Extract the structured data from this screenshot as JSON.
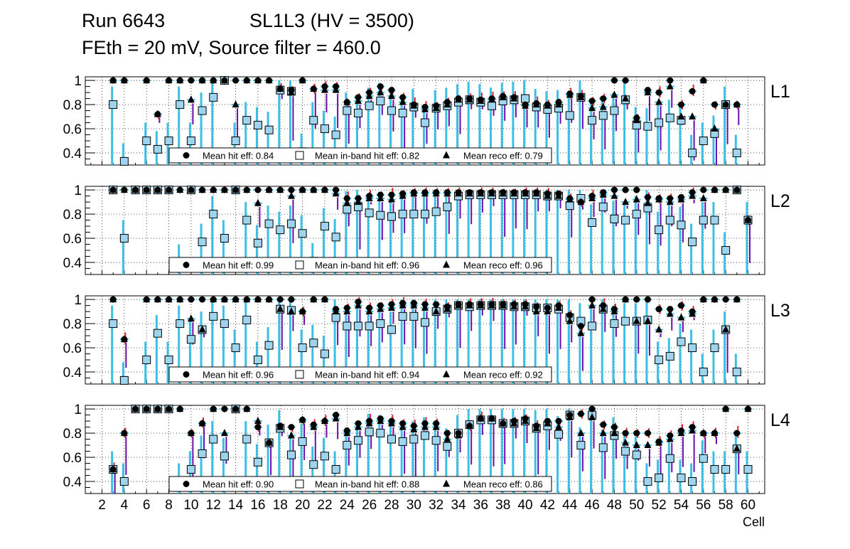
{
  "header": {
    "run_label": "Run 6643",
    "layer_label": "SL1L3 (HV = 3500)",
    "conditions": "FEth = 20 mV, Source filter = 460.0"
  },
  "chart_data": {
    "type": "scatter",
    "x_axis": {
      "label": "Cell",
      "range": [
        0.5,
        61.5
      ],
      "ticks": [
        2,
        4,
        6,
        8,
        10,
        12,
        14,
        16,
        18,
        20,
        22,
        24,
        26,
        28,
        30,
        32,
        34,
        36,
        38,
        40,
        42,
        44,
        46,
        48,
        50,
        52,
        54,
        56,
        58,
        60
      ]
    },
    "y_axis": {
      "range": [
        0.3,
        1.03
      ],
      "ticks": [
        0.4,
        0.6,
        0.8,
        1
      ],
      "grid": true
    },
    "colors": {
      "hit": "#000000",
      "inband_fill": "#9fd4ee",
      "reco": "#000000",
      "xerr": "#3cbfe6",
      "err_red": "#e0202a",
      "err_purple": "#6a0dad"
    },
    "panels": [
      {
        "name": "L1",
        "legend": {
          "hit": "Mean hit  eff: 0.84",
          "inband": "Mean in-band hit eff: 0.82",
          "reco": "Mean reco eff: 0.79"
        },
        "cells": [
          3,
          4,
          6,
          7,
          8,
          9,
          10,
          11,
          12,
          13,
          14,
          15,
          16,
          17,
          18,
          19,
          20,
          21,
          22,
          23,
          24,
          25,
          26,
          27,
          28,
          29,
          30,
          31,
          32,
          33,
          34,
          35,
          36,
          37,
          38,
          39,
          40,
          41,
          42,
          43,
          44,
          45,
          46,
          47,
          48,
          49,
          50,
          51,
          52,
          53,
          54,
          55,
          56,
          57,
          58,
          59
        ],
        "hit_eff": [
          1,
          1,
          1,
          0.72,
          1,
          1,
          1,
          1,
          1,
          1,
          1,
          1,
          1,
          1,
          0.93,
          0.92,
          1,
          0.93,
          0.95,
          0.95,
          0.82,
          0.86,
          0.9,
          0.95,
          0.92,
          0.86,
          0.8,
          0.78,
          0.79,
          0.82,
          0.85,
          0.85,
          0.84,
          0.85,
          0.87,
          0.86,
          0.8,
          0.81,
          0.8,
          0.82,
          0.89,
          0.87,
          0.83,
          0.85,
          1,
          1,
          0.69,
          0.92,
          0.9,
          1,
          0.8,
          0.91,
          1,
          0.8,
          0.8,
          0.8
        ],
        "inband_eff": [
          0.8,
          0.33,
          0.5,
          0.43,
          0.5,
          0.8,
          0.5,
          0.75,
          0.86,
          1,
          0.5,
          0.67,
          0.63,
          0.59,
          0.92,
          0.91,
          0.41,
          0.67,
          0.6,
          0.55,
          0.75,
          0.73,
          0.79,
          0.83,
          0.75,
          0.73,
          0.78,
          0.65,
          0.77,
          0.79,
          0.82,
          0.84,
          0.82,
          0.79,
          0.83,
          0.84,
          0.85,
          0.78,
          0.76,
          0.77,
          0.71,
          0.86,
          0.67,
          0.71,
          0.75,
          0.84,
          0.63,
          0.62,
          0.65,
          0.69,
          0.67,
          0.4,
          0.5,
          0.56,
          0.8,
          0.4
        ],
        "reco_eff": [
          1,
          1,
          1,
          0.72,
          1,
          1,
          0.84,
          1,
          1,
          1,
          0.8,
          1,
          1,
          1,
          0.93,
          0.9,
          1,
          0.93,
          0.92,
          0.92,
          0.82,
          0.83,
          0.87,
          0.9,
          0.87,
          0.82,
          0.79,
          0.76,
          0.77,
          0.8,
          0.84,
          0.84,
          0.83,
          0.84,
          0.86,
          0.85,
          0.79,
          0.8,
          0.79,
          0.8,
          0.88,
          0.86,
          0.77,
          0.78,
          0.88,
          0.85,
          0.67,
          0.9,
          0.82,
          0.95,
          0.7,
          0.7,
          1,
          0.6,
          0.8,
          0.8
        ]
      },
      {
        "name": "L2",
        "legend": {
          "hit": "Mean hit  eff: 0.99",
          "inband": "Mean in-band hit eff: 0.96",
          "reco": "Mean reco eff: 0.96"
        },
        "cells": [
          3,
          4,
          5,
          6,
          7,
          8,
          9,
          10,
          11,
          12,
          13,
          14,
          15,
          16,
          17,
          18,
          19,
          20,
          21,
          22,
          23,
          24,
          25,
          26,
          27,
          28,
          29,
          30,
          31,
          32,
          33,
          34,
          35,
          36,
          37,
          38,
          39,
          40,
          41,
          42,
          43,
          44,
          45,
          46,
          47,
          48,
          49,
          50,
          51,
          52,
          53,
          54,
          55,
          56,
          57,
          58,
          59,
          60
        ],
        "hit_eff": [
          1,
          1,
          1,
          1,
          1,
          1,
          1,
          1,
          1,
          1,
          1,
          1,
          1,
          1,
          1,
          1,
          1,
          1,
          1,
          1,
          1,
          0.93,
          0.93,
          0.95,
          0.96,
          0.96,
          0.97,
          0.98,
          0.98,
          0.98,
          0.98,
          0.98,
          0.98,
          0.98,
          0.98,
          0.98,
          0.98,
          0.98,
          0.98,
          0.97,
          0.97,
          0.93,
          0.9,
          0.95,
          0.98,
          1,
          1,
          1,
          0.94,
          0.93,
          0.93,
          0.94,
          0.98,
          1,
          1,
          1,
          1,
          0.75
        ],
        "inband_eff": [
          1,
          0.6,
          1,
          1,
          1,
          1,
          0.4,
          1,
          0.57,
          0.8,
          0.6,
          1,
          0.75,
          0.56,
          0.72,
          0.67,
          0.72,
          0.64,
          0.41,
          0.7,
          0.61,
          0.84,
          0.86,
          0.81,
          0.79,
          0.78,
          0.8,
          0.8,
          0.8,
          0.82,
          0.86,
          0.95,
          0.96,
          0.96,
          0.96,
          0.96,
          0.96,
          0.96,
          0.96,
          0.95,
          0.95,
          0.87,
          0.93,
          0.73,
          0.86,
          0.76,
          0.75,
          0.8,
          0.85,
          0.67,
          0.75,
          0.71,
          0.57,
          0.75,
          0.75,
          0.5,
          1,
          0.75
        ],
        "reco_eff": [
          1,
          1,
          1,
          1,
          1,
          1,
          1,
          1,
          1,
          1,
          1,
          1,
          1,
          0.89,
          1,
          1,
          0.95,
          1,
          1,
          1,
          0.97,
          0.89,
          0.9,
          0.93,
          0.93,
          0.92,
          0.95,
          0.97,
          0.97,
          0.97,
          0.97,
          0.97,
          0.97,
          0.97,
          0.97,
          0.97,
          0.97,
          0.97,
          0.97,
          0.95,
          0.95,
          0.92,
          0.9,
          0.93,
          0.96,
          0.95,
          0.9,
          0.92,
          0.89,
          0.92,
          0.9,
          0.92,
          0.95,
          0.93,
          1,
          1,
          1,
          0.75
        ]
      },
      {
        "name": "L3",
        "legend": {
          "hit": "Mean hit  eff: 0.96",
          "inband": "Mean in-band hit eff: 0.94",
          "reco": "Mean reco eff: 0.92"
        },
        "cells": [
          3,
          4,
          6,
          7,
          8,
          9,
          10,
          11,
          12,
          13,
          14,
          15,
          16,
          17,
          18,
          19,
          20,
          21,
          22,
          23,
          24,
          25,
          26,
          27,
          28,
          29,
          30,
          31,
          32,
          33,
          34,
          35,
          36,
          37,
          38,
          39,
          40,
          41,
          42,
          43,
          44,
          45,
          46,
          47,
          48,
          49,
          50,
          51,
          52,
          53,
          54,
          55,
          56,
          57,
          58,
          59
        ],
        "hit_eff": [
          1,
          0.67,
          1,
          1,
          1,
          1,
          1,
          1,
          1,
          1,
          1,
          1,
          1,
          1,
          1,
          1,
          0.9,
          1,
          1,
          0.92,
          0.93,
          0.98,
          0.93,
          0.95,
          0.96,
          0.97,
          0.97,
          0.96,
          0.96,
          0.94,
          0.96,
          0.96,
          0.96,
          0.96,
          0.96,
          0.96,
          0.96,
          0.94,
          0.93,
          0.95,
          0.87,
          0.78,
          1,
          0.95,
          0.92,
          1,
          1,
          1,
          0.92,
          0.92,
          0.95,
          0.9,
          1,
          1,
          1,
          1
        ],
        "inband_eff": [
          0.8,
          0.33,
          0.5,
          0.72,
          0.5,
          0.8,
          0.67,
          0.75,
          0.86,
          0.8,
          0.6,
          0.83,
          0.5,
          0.62,
          0.92,
          0.91,
          0.6,
          0.64,
          0.55,
          0.85,
          0.78,
          0.78,
          0.78,
          0.8,
          0.75,
          0.86,
          0.86,
          0.81,
          0.9,
          0.92,
          0.95,
          0.94,
          0.95,
          0.95,
          0.95,
          0.94,
          0.94,
          0.93,
          0.93,
          0.92,
          0.85,
          0.82,
          0.78,
          0.92,
          0.8,
          0.82,
          0.82,
          0.83,
          0.5,
          0.53,
          0.65,
          0.6,
          0.4,
          0.6,
          0.75,
          0.4
        ],
        "reco_eff": [
          1,
          0.67,
          1,
          1,
          1,
          1,
          0.84,
          0.75,
          1,
          1,
          1,
          1,
          1,
          1,
          0.92,
          0.9,
          0.9,
          1,
          1,
          0.9,
          0.9,
          0.95,
          0.9,
          0.92,
          0.93,
          0.95,
          0.95,
          0.93,
          0.9,
          0.92,
          0.95,
          0.95,
          0.95,
          0.95,
          0.95,
          0.94,
          0.94,
          0.9,
          0.9,
          0.93,
          0.82,
          0.72,
          0.95,
          0.92,
          0.9,
          1,
          0.82,
          0.82,
          0.75,
          0.88,
          0.85,
          0.88,
          1,
          1,
          0.75,
          1
        ]
      },
      {
        "name": "L4",
        "legend": {
          "hit": "Mean hit  eff: 0.90",
          "inband": "Mean in-band hit eff: 0.88",
          "reco": "Mean reco eff: 0.86"
        },
        "cells": [
          3,
          4,
          5,
          6,
          7,
          8,
          9,
          10,
          11,
          12,
          13,
          14,
          15,
          16,
          17,
          18,
          19,
          20,
          21,
          22,
          23,
          24,
          25,
          26,
          27,
          28,
          29,
          30,
          31,
          32,
          33,
          34,
          35,
          36,
          37,
          38,
          39,
          40,
          41,
          42,
          43,
          44,
          45,
          46,
          47,
          48,
          49,
          50,
          51,
          52,
          53,
          54,
          55,
          56,
          57,
          58,
          59,
          60
        ],
        "hit_eff": [
          0.5,
          0.8,
          1,
          1,
          1,
          1,
          1,
          0.8,
          0.88,
          1,
          1,
          1,
          1,
          0.85,
          0.72,
          0.86,
          0.85,
          0.91,
          0.87,
          0.9,
          0.95,
          0.82,
          0.88,
          0.9,
          0.92,
          0.9,
          0.88,
          0.86,
          0.88,
          0.88,
          0.8,
          0.8,
          0.86,
          0.92,
          0.92,
          0.88,
          0.9,
          0.92,
          0.86,
          0.9,
          0.9,
          0.95,
          0.96,
          1,
          0.87,
          0.85,
          0.8,
          0.8,
          0.8,
          0.73,
          0.78,
          0.82,
          0.85,
          0.8,
          0.8,
          1,
          0.8,
          1
        ],
        "inband_eff": [
          0.5,
          0.4,
          1,
          1,
          1,
          1,
          0.4,
          0.5,
          0.63,
          0.75,
          0.61,
          1,
          0.75,
          0.56,
          0.72,
          0.84,
          0.62,
          0.73,
          0.54,
          0.61,
          0.5,
          0.7,
          0.74,
          0.81,
          0.8,
          0.75,
          0.73,
          0.75,
          0.78,
          0.74,
          0.69,
          0.8,
          0.87,
          0.91,
          0.91,
          0.88,
          0.88,
          0.9,
          0.84,
          0.86,
          0.79,
          0.95,
          0.7,
          0.95,
          0.68,
          0.78,
          0.65,
          0.62,
          0.4,
          0.43,
          0.59,
          0.43,
          0.4,
          0.59,
          0.5,
          0.5,
          0.67,
          0.5
        ],
        "reco_eff": [
          0.5,
          0.8,
          1,
          1,
          1,
          1,
          1,
          0.8,
          0.88,
          1,
          0.8,
          1,
          1,
          0.9,
          0.72,
          0.85,
          0.78,
          0.91,
          0.85,
          0.9,
          0.92,
          0.8,
          0.85,
          0.88,
          0.9,
          0.88,
          0.85,
          0.83,
          0.85,
          0.85,
          0.75,
          0.78,
          0.86,
          0.92,
          0.92,
          0.88,
          0.88,
          0.9,
          0.84,
          0.88,
          0.85,
          0.93,
          0.8,
          0.93,
          0.8,
          0.8,
          0.72,
          0.7,
          0.7,
          0.72,
          0.75,
          0.8,
          0.82,
          0.8,
          0.8,
          1,
          0.67,
          1
        ]
      }
    ]
  }
}
